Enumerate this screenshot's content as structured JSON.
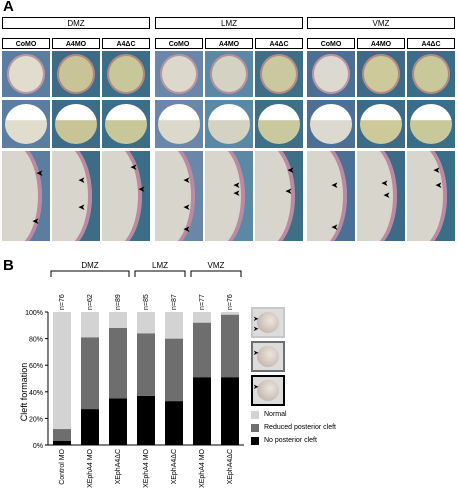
{
  "panel_a": {
    "letter": "A",
    "groups": [
      "DMZ",
      "LMZ",
      "VMZ"
    ],
    "columns": [
      "CoMO",
      "A4MO",
      "A4ΔC",
      "CoMO",
      "A4MO",
      "A4ΔC",
      "CoMO",
      "A4MO",
      "A4ΔC"
    ],
    "photo_rows": 3,
    "arrow_glyph": "➤"
  },
  "panel_b": {
    "letter": "B",
    "groups": [
      "DMZ",
      "LMZ",
      "VMZ"
    ],
    "n_labels": [
      "n=76",
      "n=62",
      "n=89",
      "n=85",
      "n=87",
      "n=77",
      "n=76"
    ],
    "legend": [
      "Normal",
      "Reduced posterior cleft",
      "No posterior cleft"
    ],
    "colors": {
      "normal": "#d3d3d3",
      "reduced": "#6e6e6e",
      "none": "#000000"
    }
  },
  "chart_data": {
    "type": "bar",
    "stacked": true,
    "categories": [
      "Control MO",
      "XEphA4 MO",
      "XEphA4ΔC",
      "XEphA4 MO",
      "XEphA4ΔC",
      "XEphA4 MO",
      "XEphA4ΔC"
    ],
    "series": [
      {
        "name": "No posterior cleft",
        "values": [
          3,
          27,
          35,
          37,
          33,
          51,
          51
        ]
      },
      {
        "name": "Reduced posterior cleft",
        "values": [
          9,
          54,
          53,
          47,
          47,
          41,
          47
        ]
      },
      {
        "name": "Normal",
        "values": [
          88,
          19,
          12,
          16,
          20,
          8,
          2
        ]
      }
    ],
    "ylabel": "Cleft formation",
    "yticks": [
      "0%",
      "20%",
      "40%",
      "60%",
      "80%",
      "100%"
    ],
    "ylim": [
      0,
      100
    ]
  }
}
